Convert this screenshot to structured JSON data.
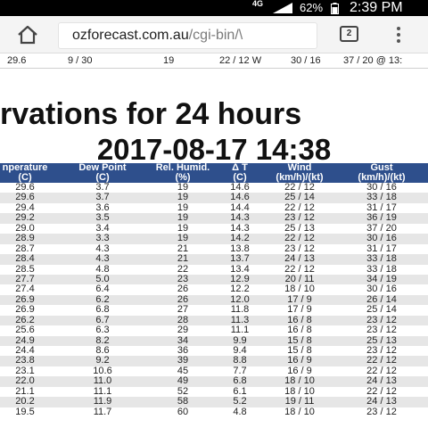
{
  "status_bar": {
    "network": "4G",
    "battery": "62%",
    "time": "2:39 PM"
  },
  "browser": {
    "url_host": "ozforecast.com.au",
    "url_path": "/cgi-bin/\\",
    "tab_count": "2"
  },
  "prev_row": {
    "temp": "29.6",
    "c1": "9 / 30",
    "c2": "19",
    "c3": "22 / 12 W",
    "c4": "30 / 16",
    "c5": "37 / 20 @ 13:"
  },
  "page": {
    "title_line1": "rvations for 24 hours",
    "title_line2": "2017-08-17 14:38"
  },
  "table": {
    "headers": [
      {
        "label": "nperature",
        "unit": "(C)"
      },
      {
        "label": "Dew Point",
        "unit": "(C)"
      },
      {
        "label": "Rel. Humid.",
        "unit": "(%)"
      },
      {
        "label": "Δ T",
        "unit": "(C)"
      },
      {
        "label": "Wind",
        "unit": "(km/h)/(kt)"
      },
      {
        "label": "Gust",
        "unit": "(km/h)/(kt)"
      }
    ],
    "rows": [
      [
        "29.6",
        "3.7",
        "19",
        "14.6",
        "22 / 12",
        "30 / 16"
      ],
      [
        "29.6",
        "3.7",
        "19",
        "14.6",
        "25 / 14",
        "33 / 18"
      ],
      [
        "29.4",
        "3.6",
        "19",
        "14.4",
        "22 / 12",
        "31 / 17"
      ],
      [
        "29.2",
        "3.5",
        "19",
        "14.3",
        "23 / 12",
        "36 / 19"
      ],
      [
        "29.0",
        "3.4",
        "19",
        "14.3",
        "25 / 13",
        "37 / 20"
      ],
      [
        "28.9",
        "3.3",
        "19",
        "14.2",
        "22 / 12",
        "30 / 16"
      ],
      [
        "28.7",
        "4.3",
        "21",
        "13.8",
        "23 / 12",
        "31 / 17"
      ],
      [
        "28.4",
        "4.3",
        "21",
        "13.7",
        "24 / 13",
        "33 / 18"
      ],
      [
        "28.5",
        "4.8",
        "22",
        "13.4",
        "22 / 12",
        "33 / 18"
      ],
      [
        "27.7",
        "5.0",
        "23",
        "12.9",
        "20 / 11",
        "34 / 19"
      ],
      [
        "27.4",
        "6.4",
        "26",
        "12.2",
        "18 / 10",
        "30 / 16"
      ],
      [
        "26.9",
        "6.2",
        "26",
        "12.0",
        "17 / 9",
        "26 / 14"
      ],
      [
        "26.9",
        "6.8",
        "27",
        "11.8",
        "17 / 9",
        "25 / 14"
      ],
      [
        "26.2",
        "6.7",
        "28",
        "11.3",
        "16 / 8",
        "23 / 12"
      ],
      [
        "25.6",
        "6.3",
        "29",
        "11.1",
        "16 / 8",
        "23 / 12"
      ],
      [
        "24.9",
        "8.2",
        "34",
        "9.9",
        "15 / 8",
        "25 / 13"
      ],
      [
        "24.4",
        "8.6",
        "36",
        "9.4",
        "15 / 8",
        "23 / 12"
      ],
      [
        "23.8",
        "9.2",
        "39",
        "8.8",
        "16 / 9",
        "22 / 12"
      ],
      [
        "23.1",
        "10.6",
        "45",
        "7.7",
        "16 / 9",
        "22 / 12"
      ],
      [
        "22.0",
        "11.0",
        "49",
        "6.8",
        "18 / 10",
        "24 / 13"
      ],
      [
        "21.1",
        "11.1",
        "52",
        "6.1",
        "18 / 10",
        "22 / 12"
      ],
      [
        "20.2",
        "11.9",
        "58",
        "5.2",
        "19 / 11",
        "24 / 13"
      ],
      [
        "19.5",
        "11.7",
        "60",
        "4.8",
        "18 / 10",
        "23 / 12"
      ]
    ]
  },
  "colors": {
    "header_bg": "#2e4f8c",
    "row_alt": "#e6e6e6"
  }
}
